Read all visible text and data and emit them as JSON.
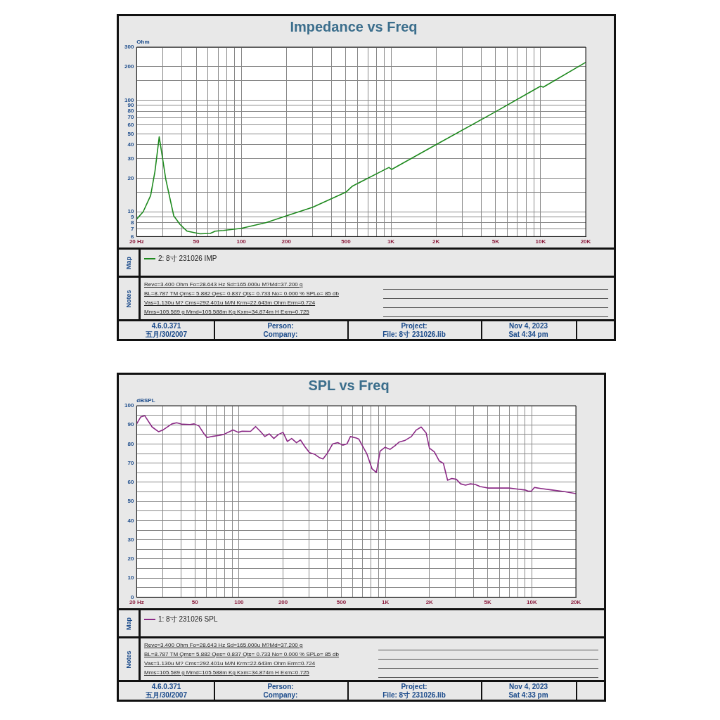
{
  "chart_data": [
    {
      "type": "line",
      "title": "Impedance vs Freq",
      "ylabel": "Ohm",
      "log": "xy",
      "grid": true,
      "legend": "bottom",
      "marker": "none",
      "line_style": "solid",
      "xlim": [
        20,
        20000
      ],
      "ylim": [
        6,
        300
      ],
      "xticks": [
        {
          "value": 20,
          "label": "20 Hz"
        },
        {
          "value": 30,
          "label": null
        },
        {
          "value": 40,
          "label": null
        },
        {
          "value": 50,
          "label": "50"
        },
        {
          "value": 60,
          "label": null
        },
        {
          "value": 70,
          "label": null
        },
        {
          "value": 80,
          "label": null
        },
        {
          "value": 90,
          "label": null
        },
        {
          "value": 100,
          "label": "100"
        },
        {
          "value": 200,
          "label": "200"
        },
        {
          "value": 300,
          "label": null
        },
        {
          "value": 400,
          "label": null
        },
        {
          "value": 500,
          "label": "500"
        },
        {
          "value": 600,
          "label": null
        },
        {
          "value": 700,
          "label": null
        },
        {
          "value": 800,
          "label": null
        },
        {
          "value": 900,
          "label": null
        },
        {
          "value": 1000,
          "label": "1K"
        },
        {
          "value": 2000,
          "label": "2K"
        },
        {
          "value": 3000,
          "label": null
        },
        {
          "value": 4000,
          "label": null
        },
        {
          "value": 5000,
          "label": "5K"
        },
        {
          "value": 6000,
          "label": null
        },
        {
          "value": 7000,
          "label": null
        },
        {
          "value": 8000,
          "label": null
        },
        {
          "value": 9000,
          "label": null
        },
        {
          "value": 10000,
          "label": "10K"
        },
        {
          "value": 20000,
          "label": "20K"
        }
      ],
      "yticks": [
        6,
        7,
        8,
        9,
        10,
        {
          "value": 15,
          "label": null
        },
        20,
        30,
        40,
        50,
        60,
        70,
        80,
        90,
        100,
        {
          "value": 150,
          "label": null
        },
        200,
        300
      ],
      "series": [
        {
          "name": "2: 8寸 231026 IMP",
          "color": "#1f8a1f",
          "x": [
            20,
            22.1,
            24.8,
            26.5,
            28.3,
            29.5,
            31.3,
            35.4,
            39,
            43.5,
            53,
            62,
            67,
            76,
            100,
            147,
            200,
            300,
            500,
            553,
            970,
            1010,
            2000,
            5000,
            10000,
            10400,
            20000
          ],
          "values": [
            8.6,
            10,
            14,
            23,
            47,
            33,
            19.6,
            9.2,
            7.7,
            6.7,
            6.35,
            6.4,
            6.7,
            6.8,
            7.1,
            8,
            9.2,
            11,
            15,
            17,
            25,
            24,
            40,
            79,
            134,
            131,
            219
          ]
        }
      ],
      "annotations": [
        "Map",
        "Notes",
        "Revc=3.400 Ohm  Fo=28.643 Hz  Sd=165.000u M?Md=37.200 g",
        "BL=8.787 TM  Qms= 5.882  Qes= 0.837  Qts= 0.733  No= 0.000 %   SPLo= 85 db",
        "Vas=1.130u M? Cms=292.401u M/N  Krm=22.643m Ohm  Erm=0.724",
        "Mms=105.589 g  Mmd=105.588m Kg  Kxm=34.874m H  Exm=0.725",
        "4.6.0.371",
        "五月/30/2007",
        "Person:",
        "Company:",
        "Project:",
        "File: 8寸 231026.lib",
        "Nov  4, 2023",
        "Sat  4:34 pm"
      ]
    },
    {
      "type": "line",
      "title": "SPL vs Freq",
      "ylabel": "dBSPL",
      "log": "x",
      "grid": true,
      "legend": "bottom",
      "marker": "none",
      "line_style": "solid",
      "xlim": [
        20,
        20000
      ],
      "ylim": [
        0,
        100
      ],
      "xticks": [
        {
          "value": 20,
          "label": "20 Hz"
        },
        {
          "value": 30,
          "label": null
        },
        {
          "value": 40,
          "label": null
        },
        {
          "value": 50,
          "label": "50"
        },
        {
          "value": 60,
          "label": null
        },
        {
          "value": 70,
          "label": null
        },
        {
          "value": 80,
          "label": null
        },
        {
          "value": 90,
          "label": null
        },
        {
          "value": 100,
          "label": "100"
        },
        {
          "value": 200,
          "label": "200"
        },
        {
          "value": 300,
          "label": null
        },
        {
          "value": 400,
          "label": null
        },
        {
          "value": 500,
          "label": "500"
        },
        {
          "value": 600,
          "label": null
        },
        {
          "value": 700,
          "label": null
        },
        {
          "value": 800,
          "label": null
        },
        {
          "value": 900,
          "label": null
        },
        {
          "value": 1000,
          "label": "1K"
        },
        {
          "value": 2000,
          "label": "2K"
        },
        {
          "value": 3000,
          "label": null
        },
        {
          "value": 4000,
          "label": null
        },
        {
          "value": 5000,
          "label": "5K"
        },
        {
          "value": 6000,
          "label": null
        },
        {
          "value": 7000,
          "label": null
        },
        {
          "value": 8000,
          "label": null
        },
        {
          "value": 9000,
          "label": null
        },
        {
          "value": 10000,
          "label": "10K"
        },
        {
          "value": 20000,
          "label": "20K"
        }
      ],
      "yticks": [
        0,
        {
          "value": 5,
          "label": null
        },
        10,
        {
          "value": 15,
          "label": null
        },
        20,
        {
          "value": 25,
          "label": null
        },
        30,
        {
          "value": 35,
          "label": null
        },
        40,
        {
          "value": 45,
          "label": null
        },
        50,
        {
          "value": 55,
          "label": null
        },
        60,
        {
          "value": 65,
          "label": null
        },
        70,
        {
          "value": 75,
          "label": null
        },
        80,
        {
          "value": 85,
          "label": null
        },
        90,
        {
          "value": 95,
          "label": null
        },
        100
      ],
      "series": [
        {
          "name": "1: 8寸 231026 SPL",
          "color": "#8b2a86",
          "x": [
            20,
            21.3,
            22.7,
            25.5,
            28.3,
            30.2,
            34.8,
            37.5,
            41.1,
            46.3,
            49.4,
            53.3,
            57.6,
            60.6,
            66,
            73,
            78.6,
            87,
            91,
            99,
            105,
            120,
            130,
            140,
            150,
            161,
            173,
            186,
            200,
            214,
            229,
            247,
            263,
            282,
            303,
            328,
            356,
            375,
            400,
            437,
            473,
            511,
            547,
            577,
            634,
            658,
            749,
            810,
            868,
            920,
            995,
            1075,
            1160,
            1240,
            1355,
            1505,
            1625,
            1755,
            1898,
            2000,
            2160,
            2330,
            2490,
            2660,
            2840,
            3050,
            3265,
            3525,
            3810,
            4110,
            4440,
            4790,
            5040,
            7000,
            7930,
            8990,
            9450,
            9930,
            10430,
            11520,
            13740,
            16800,
            20000
          ],
          "values": [
            90.5,
            94.1,
            94.8,
            88.9,
            86.4,
            87.3,
            90.5,
            91.1,
            90.3,
            90.2,
            90.5,
            89.4,
            85.4,
            83.4,
            84,
            84.5,
            85,
            86.6,
            87.3,
            86.1,
            86.7,
            86.6,
            89.1,
            86.6,
            83.9,
            85.3,
            82.9,
            85,
            86.1,
            81.3,
            82.9,
            80.7,
            82.1,
            78.6,
            75.5,
            74.7,
            72.8,
            72.2,
            75,
            80.1,
            80.7,
            79.4,
            80.1,
            83.9,
            83.1,
            82.6,
            74.7,
            67.1,
            65.2,
            76.3,
            78.3,
            77.2,
            79,
            81,
            81.8,
            83.9,
            87.3,
            88.9,
            85.8,
            77.8,
            75.9,
            71.2,
            69.9,
            61.1,
            62,
            61.6,
            59.2,
            58.5,
            59.2,
            58.9,
            57.8,
            57.3,
            57,
            57,
            56.5,
            56,
            55.4,
            55.4,
            57.3,
            56.8,
            56,
            55.1,
            54.1
          ]
        }
      ],
      "annotations": [
        "Map",
        "Notes",
        "Revc=3.400 Ohm  Fo=28.643 Hz  Sd=165.000u M?Md=37.200 g",
        "BL=8.787 TM  Qms= 5.882  Qes= 0.837  Qts= 0.733  No= 0.000 %   SPLo= 85 db",
        "Vas=1.130u M? Cms=292.401u M/N  Krm=22.643m Ohm  Erm=0.724",
        "Mms=105.589 g  Mmd=105.588m Kg  Kxm=34.874m H  Exm=0.725",
        "4.6.0.371",
        "五月/30/2007",
        "Person:",
        "Company:",
        "Project:",
        "File: 8寸 231026.lib",
        "Nov  4, 2023",
        "Sat  4:33 pm"
      ]
    }
  ]
}
